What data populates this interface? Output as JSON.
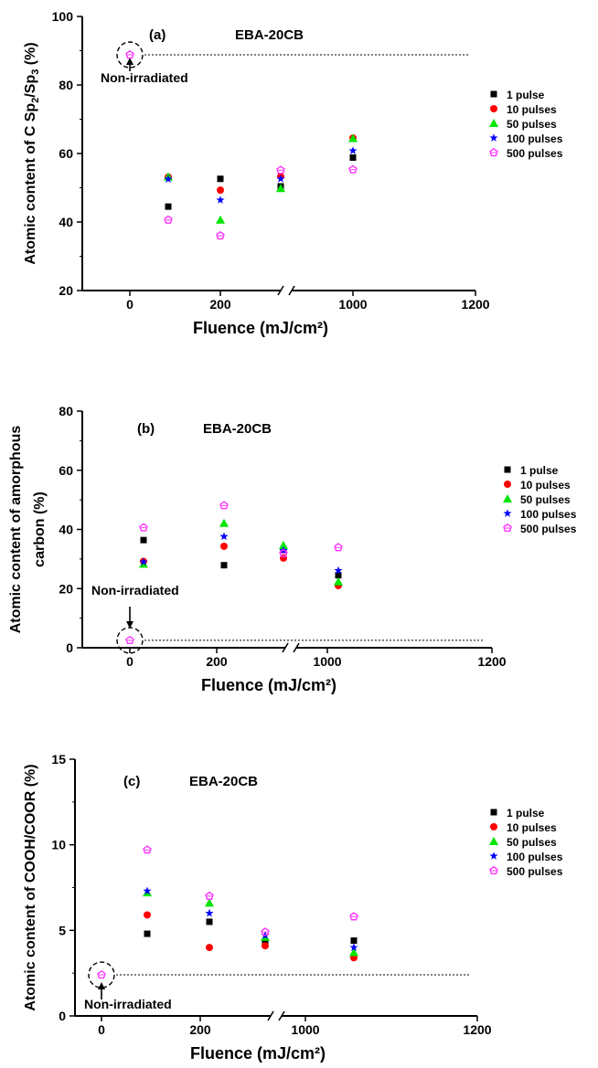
{
  "xtick_labels": [
    "0",
    "200",
    "1000",
    "1200"
  ],
  "xlabel": "Fluence (mJ/cm²)",
  "legend": [
    "1 pulse",
    "10 pulses",
    "50 pulses",
    "100 pulses",
    "500 pulses"
  ],
  "colors": {
    "1 pulse": "#000000",
    "10 pulses": "#ff0000",
    "50 pulses": "#00e600",
    "100 pulses": "#0000ff",
    "500 pulses": "#ff33ff",
    "axis": "#000000",
    "reference_line": "#000000"
  },
  "markers": {
    "1 pulse": "square",
    "10 pulses": "circle",
    "50 pulses": "triangle",
    "100 pulses": "star",
    "500 pulses": "pentagon"
  },
  "chart_data": [
    {
      "type": "scatter",
      "panel_label": "(a)",
      "title": "EBA-20CB",
      "ylabel_parts": [
        "Atomic content of C Sp",
        "2",
        "/Sp",
        "3",
        " (%)"
      ],
      "xlabel": "Fluence (mJ/cm²)",
      "ylim": [
        20,
        100
      ],
      "yticks": [
        20,
        40,
        60,
        80,
        100
      ],
      "x_positions": [
        "0",
        "~100",
        "~210",
        "~350",
        "~1100"
      ],
      "axis_break_between": [
        "~350",
        "1000"
      ],
      "reference": {
        "label": "Non-irradiated",
        "value": 88.8
      },
      "series": [
        {
          "name": "1 pulse",
          "values": [
            null,
            44.5,
            52.6,
            50.4,
            58.8
          ]
        },
        {
          "name": "10 pulses",
          "values": [
            null,
            53.1,
            49.3,
            53.3,
            64.5
          ]
        },
        {
          "name": "50 pulses",
          "values": [
            null,
            53.2,
            40.6,
            49.8,
            64.4
          ]
        },
        {
          "name": "100 pulses",
          "values": [
            null,
            52.5,
            46.4,
            52.6,
            60.8
          ]
        },
        {
          "name": "500 pulses",
          "values": [
            88.8,
            40.6,
            36.0,
            55.1,
            55.3
          ]
        }
      ]
    },
    {
      "type": "scatter",
      "panel_label": "(b)",
      "title": "EBA-20CB",
      "ylabel_lines": [
        "Atomic content of amorphous",
        "carbon (%)"
      ],
      "xlabel": "Fluence (mJ/cm²)",
      "ylim": [
        0,
        80
      ],
      "yticks": [
        0,
        20,
        40,
        60,
        80
      ],
      "x_positions": [
        "0",
        "~100",
        "~210",
        "~350",
        "~1100"
      ],
      "axis_break_between": [
        "~350",
        "1000"
      ],
      "reference": {
        "label": "Non-irradiated",
        "value": 2.5
      },
      "series": [
        {
          "name": "1 pulse",
          "values": [
            null,
            36.4,
            27.9,
            33.3,
            24.5
          ]
        },
        {
          "name": "10 pulses",
          "values": [
            null,
            29.2,
            34.3,
            30.3,
            21.0
          ]
        },
        {
          "name": "50 pulses",
          "values": [
            null,
            28.3,
            42.1,
            34.6,
            22.3
          ]
        },
        {
          "name": "100 pulses",
          "values": [
            null,
            29.0,
            37.6,
            32.9,
            26.1
          ]
        },
        {
          "name": "500 pulses",
          "values": [
            2.5,
            40.6,
            48.1,
            31.9,
            33.9
          ]
        }
      ]
    },
    {
      "type": "scatter",
      "panel_label": "(c)",
      "title": "EBA-20CB",
      "ylabel_lines": [
        "Atomic content of COOH/COOR (%)"
      ],
      "xlabel": "Fluence (mJ/cm²)",
      "ylim": [
        0,
        15
      ],
      "yticks": [
        0,
        5,
        10,
        15
      ],
      "x_positions": [
        "0",
        "~100",
        "~210",
        "~350",
        "~1100"
      ],
      "axis_break_between": [
        "~350",
        "1000"
      ],
      "reference": {
        "label": "Non-irradiated",
        "value": 2.4
      },
      "series": [
        {
          "name": "1 pulse",
          "values": [
            null,
            4.8,
            5.5,
            4.3,
            4.4
          ]
        },
        {
          "name": "10 pulses",
          "values": [
            null,
            5.9,
            4.0,
            4.1,
            3.4
          ]
        },
        {
          "name": "50 pulses",
          "values": [
            null,
            7.2,
            6.6,
            4.6,
            3.7
          ]
        },
        {
          "name": "100 pulses",
          "values": [
            null,
            7.3,
            6.0,
            4.7,
            4.0
          ]
        },
        {
          "name": "500 pulses",
          "values": [
            2.4,
            9.7,
            7.0,
            4.9,
            5.8
          ]
        }
      ]
    }
  ]
}
